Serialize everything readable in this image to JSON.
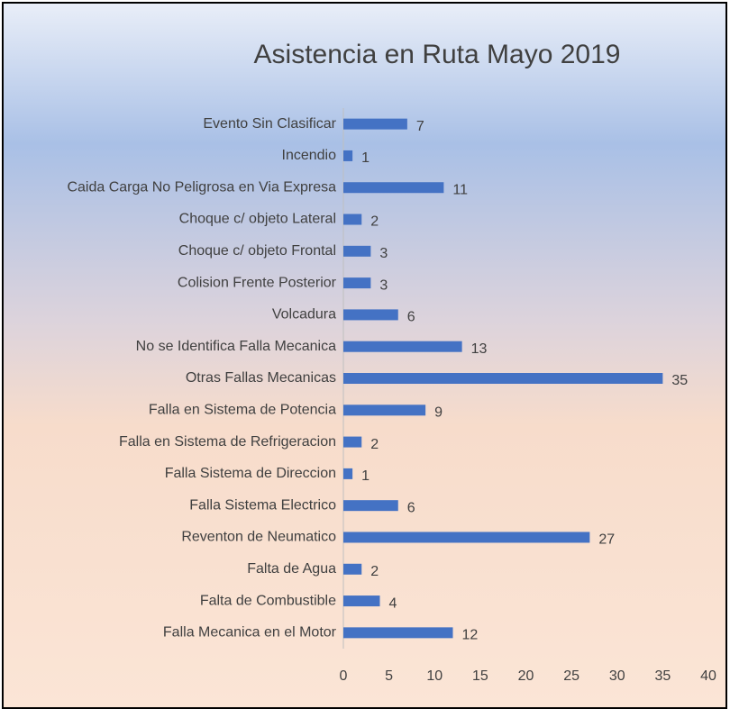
{
  "chart_data": {
    "type": "barh",
    "title": "Asistencia en Ruta Mayo 2019",
    "categories": [
      "Evento Sin Clasificar",
      "Incendio",
      "Caida Carga No Peligrosa en Via Expresa",
      "Choque c/ objeto Lateral",
      "Choque c/ objeto Frontal",
      "Colision Frente Posterior",
      "Volcadura",
      "No se Identifica Falla Mecanica",
      "Otras Fallas Mecanicas",
      "Falla en Sistema de Potencia",
      "Falla en Sistema de Refrigeracion",
      "Falla Sistema de Direccion",
      "Falla Sistema Electrico",
      "Reventon de Neumatico",
      "Falta de Agua",
      "Falta de Combustible",
      "Falla Mecanica en el Motor"
    ],
    "values": [
      7,
      1,
      11,
      2,
      3,
      3,
      6,
      13,
      35,
      9,
      2,
      1,
      6,
      27,
      2,
      4,
      12
    ],
    "color": "#4472c4",
    "xlim": [
      0,
      40
    ],
    "xticks": [
      0,
      5,
      10,
      15,
      20,
      25,
      30,
      35,
      40
    ],
    "grid": false
  }
}
